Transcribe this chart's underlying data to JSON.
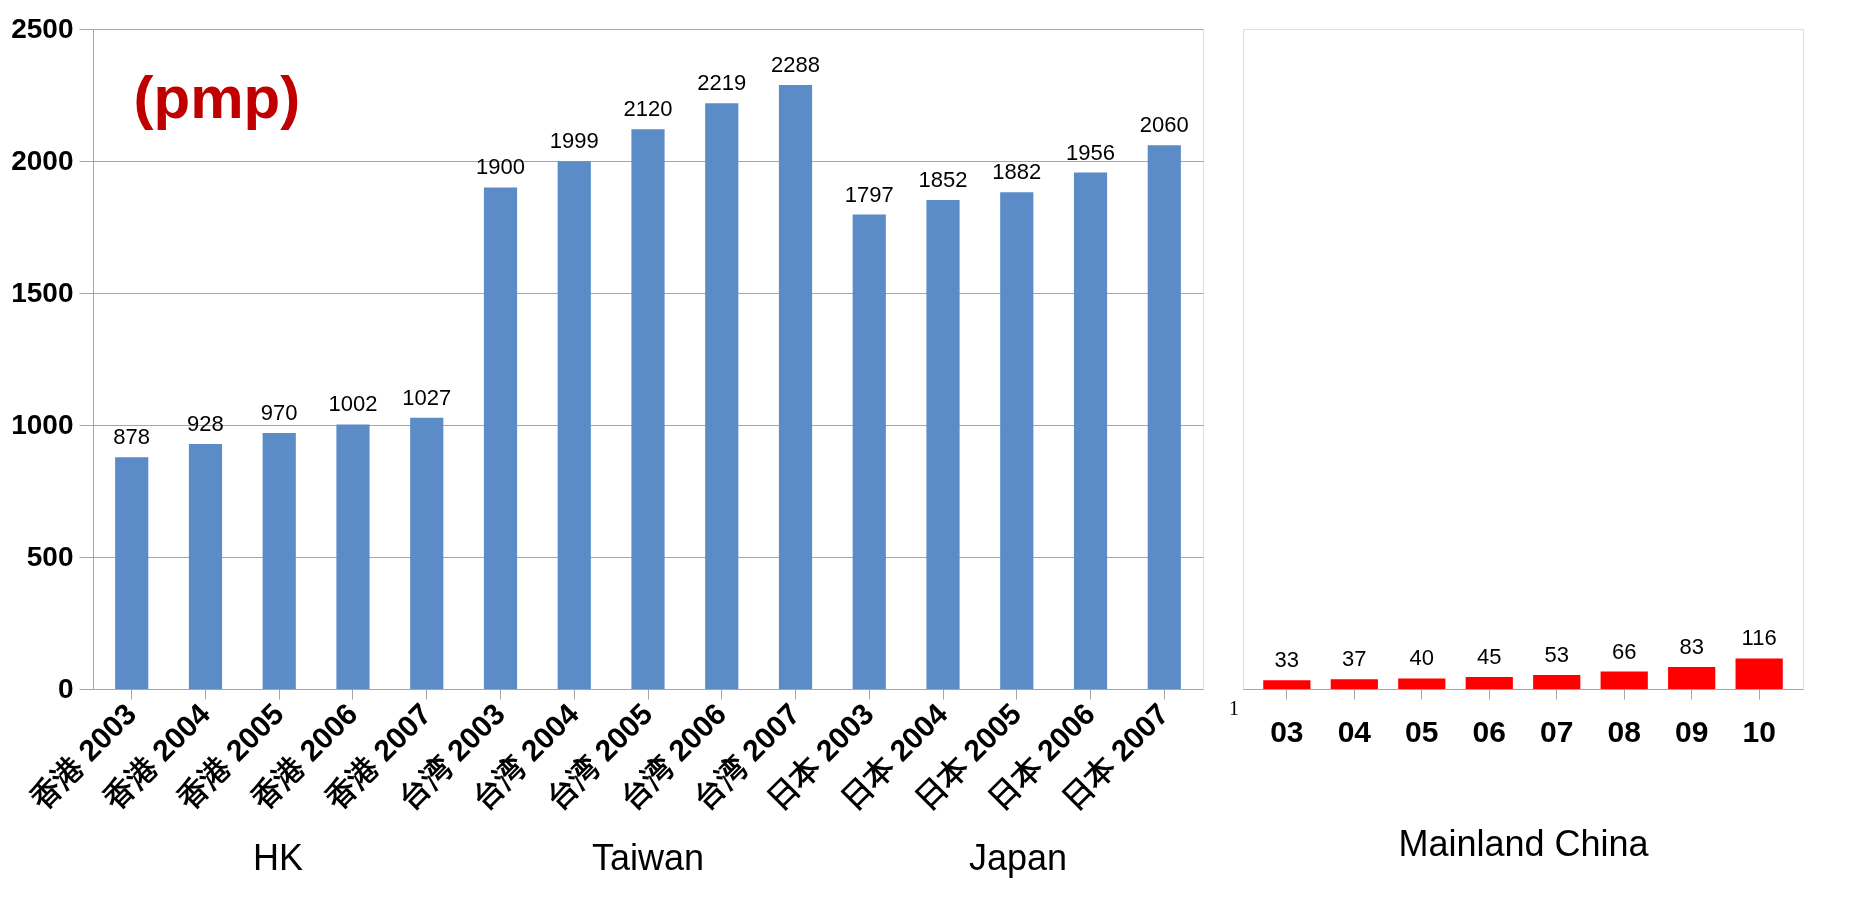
{
  "chart_data": [
    {
      "type": "bar",
      "ylabel": "(pmp)",
      "categories": [
        "香港 2003",
        "香港 2004",
        "香港 2005",
        "香港 2006",
        "香港 2007",
        "台湾 2003",
        "台湾 2004",
        "台湾 2005",
        "台湾 2006",
        "台湾 2007",
        "日本 2003",
        "日本 2004",
        "日本 2005",
        "日本 2006",
        "日本 2007"
      ],
      "values": [
        878,
        928,
        970,
        1002,
        1027,
        1900,
        1999,
        2120,
        2219,
        2288,
        1797,
        1852,
        1882,
        1956,
        2060
      ],
      "color": "#5b8cc8",
      "ylim": [
        0,
        2500
      ],
      "yticks": [
        0,
        500,
        1000,
        1500,
        2000,
        2500
      ],
      "grid": "y",
      "data_labels": true,
      "annotations": [
        "HK",
        "Taiwan",
        "Japan"
      ]
    },
    {
      "type": "bar",
      "xlabel": "Mainland China",
      "categories": [
        "03",
        "04",
        "05",
        "06",
        "07",
        "08",
        "09",
        "10"
      ],
      "values": [
        33,
        37,
        40,
        45,
        53,
        66,
        83,
        116
      ],
      "color": "#ff0000",
      "ylim": [
        0,
        2500
      ],
      "tick_labels": "x",
      "data_labels": true,
      "annotations": [
        "1"
      ]
    }
  ]
}
